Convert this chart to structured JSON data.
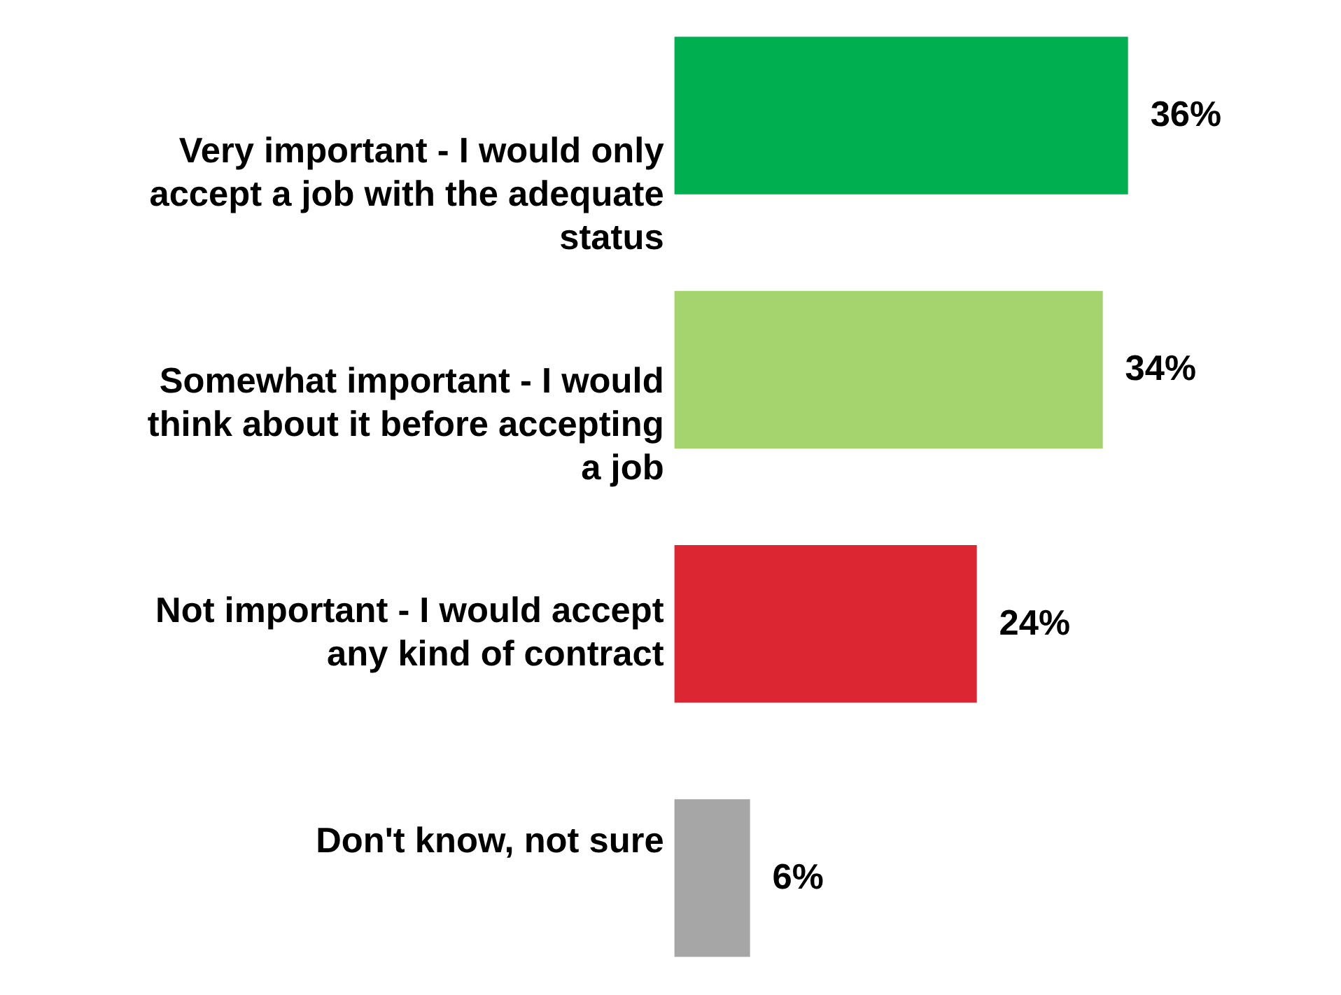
{
  "chart_data": {
    "type": "bar",
    "orientation": "horizontal",
    "tick_labels": "y",
    "categories": [
      "Very important - I would only accept a job with the adequate status",
      "Somewhat important - I would think about it before accepting a job",
      "Not important - I would accept any kind of contract",
      "Don't know, not sure"
    ],
    "values": [
      36,
      34,
      24,
      6
    ],
    "colors": [
      "#00b050",
      "#a5d46f",
      "#dc2732",
      "#a6a6a6"
    ],
    "value_labels": [
      "36%",
      "34%",
      "24%",
      "6%"
    ]
  }
}
